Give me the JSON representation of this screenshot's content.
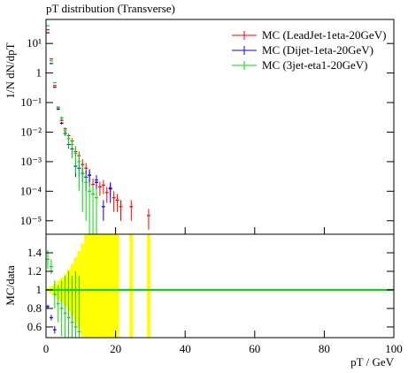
{
  "chart_data": {
    "type": "scatter",
    "title": "pT distribution (Transverse)",
    "ylabel": "1/N dN/dpT",
    "ratio_ylabel": "MC/data",
    "xlabel": "pT / GeV",
    "x": [
      0.5,
      1.5,
      2.5,
      3.5,
      4.5,
      5.5,
      6.5,
      7.5,
      8.5,
      9.5,
      10.5,
      11.5,
      12.5,
      13.5,
      14.5,
      15.5,
      16.5,
      17.5,
      18.5,
      19.5,
      20.5,
      21.5,
      22.5,
      23.5,
      24.5,
      25.5,
      26.5,
      27.5,
      28.5,
      29.5
    ],
    "xlim": [
      0,
      100
    ],
    "xticks": [
      0,
      20,
      40,
      60,
      80,
      100
    ],
    "ylim": [
      3.5e-06,
      65
    ],
    "log_y": true,
    "yticks": [
      {
        "value": 10,
        "label": "10¹"
      },
      1,
      {
        "value": 0.1,
        "label": "10⁻¹"
      },
      {
        "value": 0.01,
        "label": "10⁻²"
      },
      {
        "value": 0.001,
        "label": "10⁻³"
      },
      {
        "value": 0.0001,
        "label": "10⁻⁴"
      },
      {
        "value": 1e-05,
        "label": "10⁻⁵"
      }
    ],
    "ratio_ylim": [
      0.485,
      1.6
    ],
    "ratio_yticks": [
      0.6,
      0.8,
      1,
      1.2,
      1.4
    ],
    "ratio_reference": 1,
    "ratio_band_color": "#ffff00",
    "ratio_band": [
      0.02,
      0.04,
      0.06,
      0.1,
      0.13,
      0.17,
      0.22,
      0.28,
      0.35,
      0.42,
      0.5,
      0.6,
      1,
      1,
      1,
      1,
      1,
      1,
      1,
      1,
      1,
      null,
      null,
      null,
      1,
      null,
      null,
      null,
      null,
      1
    ],
    "legend": "upper right",
    "series": [
      {
        "name": "MC (LeadJet-1eta-20GeV)",
        "color": "#ff0000",
        "values": [
          29,
          3,
          0.38,
          0.07,
          0.025,
          0.013,
          0.0076,
          0.005,
          0.0022,
          0.0016,
          0.0008,
          0.0006,
          0.00035,
          0.00017,
          0.00024,
          0.00014,
          0.00016,
          9e-05,
          0.00013,
          6e-05,
          5e-05,
          3e-05,
          null,
          null,
          3e-05,
          null,
          null,
          null,
          null,
          1.5e-05
        ],
        "errors": [
          0.3,
          0.05,
          0.01,
          0.003,
          0.002,
          0.0015,
          0.0012,
          0.001,
          0.0007,
          0.0006,
          0.0004,
          0.0003,
          0.0002,
          0.0001,
          0.0001,
          7e-05,
          8e-05,
          5e-05,
          6e-05,
          4e-05,
          3e-05,
          2e-05,
          null,
          null,
          2e-05,
          null,
          null,
          null,
          null,
          1e-05
        ]
      },
      {
        "name": "MC (Dijet-1eta-20GeV)",
        "color": "#0000ff",
        "values": [
          23,
          2.1,
          0.33,
          0.06,
          0.02,
          0.009,
          0.0038,
          0.0027,
          0.0007,
          0.0006,
          0.0004,
          0.0003,
          0.00035,
          null,
          0.0002,
          null,
          3e-05,
          null,
          0.00012,
          null,
          null,
          null,
          null,
          null,
          null,
          null,
          null,
          null,
          null,
          null
        ],
        "errors": [
          0.3,
          0.05,
          0.01,
          0.004,
          0.002,
          0.0015,
          0.001,
          0.0009,
          0.0004,
          0.0003,
          0.0002,
          0.0002,
          0.0002,
          null,
          0.00015,
          null,
          2e-05,
          null,
          8e-05,
          null,
          null,
          null,
          null,
          null,
          null,
          null,
          null,
          null,
          null,
          null
        ],
        "ratio": [
          0.82,
          0.7,
          0.57,
          null,
          null,
          null,
          null,
          null,
          null,
          null,
          null,
          null,
          null,
          null,
          null,
          null,
          null,
          null,
          null,
          null,
          null,
          null,
          null,
          null,
          null,
          null,
          null,
          null,
          null,
          null
        ],
        "ratio_errors": [
          0.02,
          0.03,
          0.04,
          null,
          null,
          null,
          null,
          null,
          null,
          null,
          null,
          null,
          null,
          null,
          null,
          null,
          null,
          null,
          null,
          null,
          null,
          null,
          null,
          null,
          null,
          null,
          null,
          null,
          null,
          null
        ]
      },
      {
        "name": "MC (3jet-eta1-20GeV)",
        "color": "#00dd00",
        "values": [
          40,
          2.6,
          0.47,
          0.068,
          0.03,
          0.011,
          0.006,
          0.0038,
          0.0019,
          0.001,
          0.0004,
          0.0002,
          0.0001,
          8e-05,
          6e-05,
          null,
          null,
          null,
          null,
          null,
          null,
          null,
          null,
          null,
          null,
          null,
          null,
          null,
          null,
          null
        ],
        "errors": [
          0.5,
          0.08,
          0.02,
          0.006,
          0.004,
          0.003,
          0.003,
          0.0025,
          0.0015,
          0.0009,
          0.00038,
          0.00019,
          0.0001,
          8e-05,
          6e-05,
          null,
          null,
          null,
          null,
          null,
          null,
          null,
          null,
          null,
          null,
          null,
          null,
          null,
          null,
          null
        ],
        "ratio": [
          1.33,
          1.25,
          0.95,
          0.85,
          0.8,
          0.75,
          0.7,
          0.65,
          0.6,
          0.55,
          null,
          null,
          null,
          null,
          null,
          null,
          null,
          null,
          null,
          null,
          null,
          null,
          null,
          null,
          null,
          null,
          null,
          null,
          null,
          null
        ],
        "ratio_errors": [
          0.1,
          0.08,
          0.15,
          0.2,
          0.3,
          0.4,
          0.5,
          0.5,
          0.6,
          0.6,
          null,
          null,
          null,
          null,
          null,
          null,
          null,
          null,
          null,
          null,
          null,
          null,
          null,
          null,
          null,
          null,
          null,
          null,
          null,
          null
        ]
      }
    ]
  }
}
